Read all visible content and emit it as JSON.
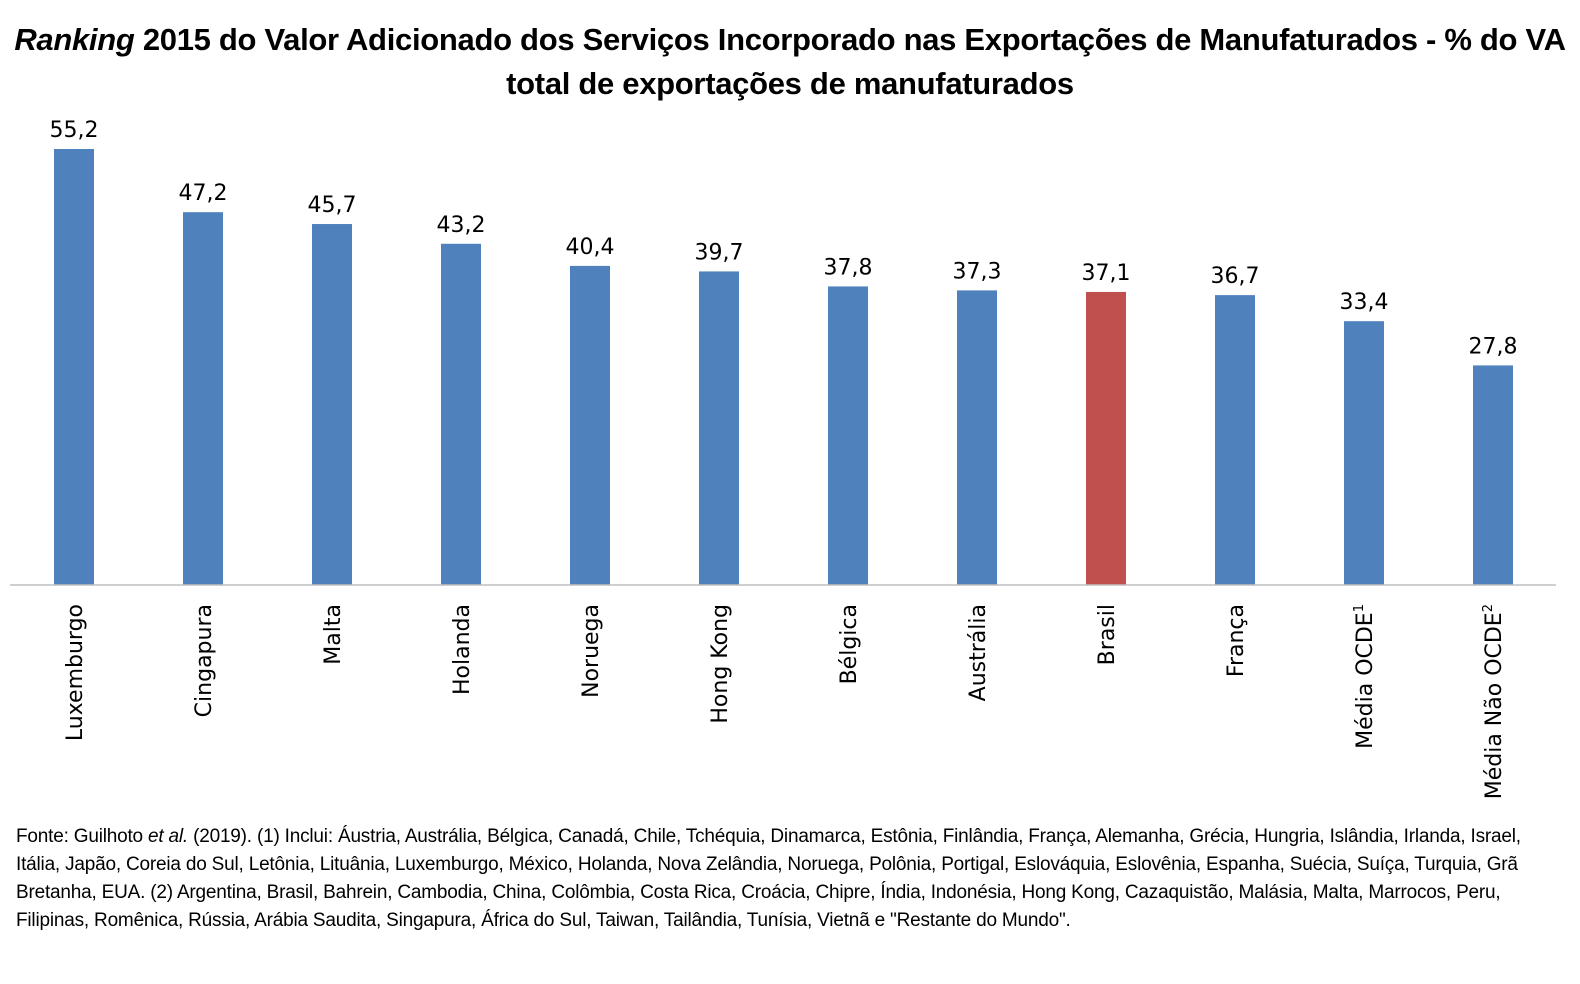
{
  "chart_data": {
    "type": "bar",
    "title_italic": "Ranking",
    "title_rest": " 2015 do Valor Adicionado dos Serviços Incorporado nas Exportações de Manufaturados - % do VA total de exportações de manufaturados",
    "xlabel": "",
    "ylabel": "",
    "ylim": [
      0,
      55.2
    ],
    "grid": false,
    "legend": "none",
    "categories": [
      "Luxemburgo",
      "Cingapura",
      "Malta",
      "Holanda",
      "Noruega",
      "Hong Kong",
      "Bélgica",
      "Austrália",
      "Brasil",
      "França",
      "Média OCDE",
      "Média Não OCDE"
    ],
    "category_superscripts": [
      "",
      "",
      "",
      "",
      "",
      "",
      "",
      "",
      "",
      "",
      "1",
      "2"
    ],
    "values": [
      55.2,
      47.2,
      45.7,
      43.2,
      40.4,
      39.7,
      37.8,
      37.3,
      37.1,
      36.7,
      33.4,
      27.8
    ],
    "value_labels": [
      "55,2",
      "47,2",
      "45,7",
      "43,2",
      "40,4",
      "39,7",
      "37,8",
      "37,3",
      "37,1",
      "36,7",
      "33,4",
      "27,8"
    ],
    "highlight_index": 8,
    "colors": {
      "default": "#4F81BD",
      "highlight": "#C0504D",
      "axis": "#BFBFBF"
    }
  },
  "footnote": {
    "prefix": "Fonte: Guilhoto ",
    "italic": "et al.",
    "text": " (2019). (1) Inclui: Áustria, Austrália, Bélgica, Canadá, Chile, Tchéquia, Dinamarca, Estônia, Finlândia, França, Alemanha, Grécia, Hungria, Islândia, Irlanda, Israel, Itália, Japão, Coreia do Sul, Letônia, Lituânia, Luxemburgo, México, Holanda, Nova Zelândia, Noruega, Polônia, Portigal, Eslováquia, Eslovênia, Espanha, Suécia, Suíça, Turquia, Grã Bretanha, EUA. (2) Argentina, Brasil, Bahrein, Cambodia, China, Colômbia, Costa Rica, Croácia, Chipre, Índia, Indonésia, Hong Kong, Cazaquistão, Malásia, Malta, Marrocos, Peru, Filipinas, Romênica, Rússia, Arábia Saudita, Singapura, África do Sul, Taiwan, Tailândia, Tunísia, Vietnã e \"Restante do Mundo\"."
  }
}
